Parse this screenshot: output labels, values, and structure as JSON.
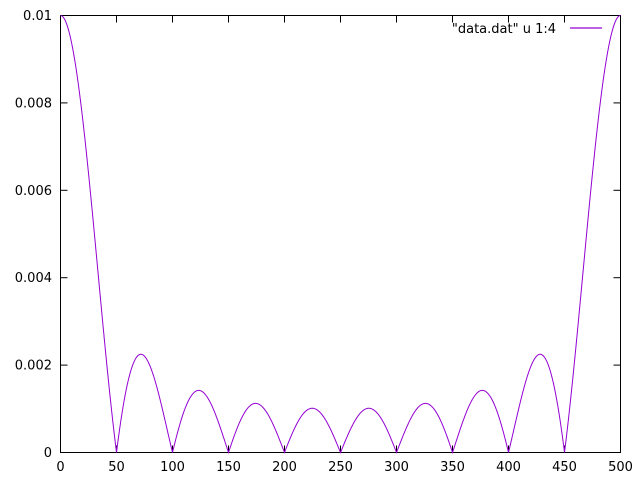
{
  "chart_data": {
    "type": "line",
    "title": "",
    "xlabel": "",
    "ylabel": "",
    "xlim": [
      0,
      500
    ],
    "ylim": [
      0,
      0.01
    ],
    "x_ticks": [
      0,
      50,
      100,
      150,
      200,
      250,
      300,
      350,
      400,
      450,
      500
    ],
    "x_tick_labels": [
      "0",
      "50",
      "100",
      "150",
      "200",
      "250",
      "300",
      "350",
      "400",
      "450",
      "500"
    ],
    "y_ticks": [
      0,
      0.002,
      0.004,
      0.006,
      0.008,
      0.01
    ],
    "y_tick_labels": [
      "0",
      "0.002",
      "0.004",
      "0.006",
      "0.008",
      "0.01"
    ],
    "grid": false,
    "border_color": "#000000",
    "background_color": "#ffffff",
    "legend": {
      "position": "top-right-inside",
      "box": false,
      "entries": [
        {
          "label": "\"data.dat\" u 1:4",
          "color": "#9400d3"
        }
      ]
    },
    "series": [
      {
        "name": "\"data.dat\" u 1:4",
        "color": "#9400d3",
        "line_width": 1,
        "model": {
          "description": "y = A * |sin(N*pi*x/P) / (N*sin(pi*x/P))| (Dirichlet kernel magnitude); endpoints take the limit value A",
          "A": 0.01,
          "N": 10,
          "P": 500,
          "sample_step": 0.5
        },
        "zeros_x": [
          50,
          100,
          150,
          200,
          250,
          300,
          350,
          400,
          450
        ],
        "key_points": [
          [
            0,
            0.01
          ],
          [
            50,
            0
          ],
          [
            72,
            0.00225
          ],
          [
            100,
            0
          ],
          [
            122,
            0.0014
          ],
          [
            150,
            0
          ],
          [
            172,
            0.00112
          ],
          [
            200,
            0
          ],
          [
            223,
            0.00101
          ],
          [
            250,
            0
          ],
          [
            277,
            0.00101
          ],
          [
            300,
            0
          ],
          [
            328,
            0.00112
          ],
          [
            350,
            0
          ],
          [
            378,
            0.0014
          ],
          [
            400,
            0
          ],
          [
            428,
            0.00225
          ],
          [
            450,
            0
          ],
          [
            500,
            0.01
          ]
        ]
      }
    ]
  }
}
